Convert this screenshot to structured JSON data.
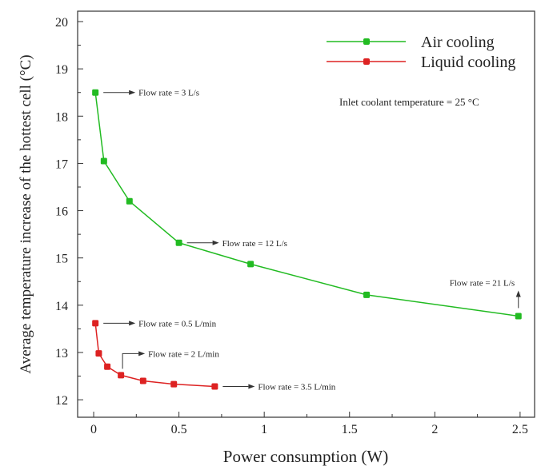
{
  "chart_data": {
    "type": "line",
    "xlabel": "Power consumption (W)",
    "ylabel": "Average temperature increase of the hottest cell (°C)",
    "xlim": [
      -0.094,
      2.585
    ],
    "ylim": [
      11.63,
      20.22
    ],
    "xticks": [
      0,
      0.5,
      1,
      1.5,
      2,
      2.5
    ],
    "xtick_labels": [
      "0",
      "0.5",
      "1",
      "1.5",
      "2",
      "2.5"
    ],
    "yticks": [
      12,
      13,
      14,
      15,
      16,
      17,
      18,
      19,
      20
    ],
    "ytick_labels": [
      "12",
      "13",
      "14",
      "15",
      "16",
      "17",
      "18",
      "19",
      "20"
    ],
    "grid": false,
    "legend_position": "top-right",
    "series": [
      {
        "name": "Air cooling",
        "color": "#22bb22",
        "x": [
          0.01,
          0.06,
          0.21,
          0.5,
          0.92,
          1.6,
          2.49
        ],
        "y": [
          18.5,
          17.05,
          16.2,
          15.32,
          14.87,
          14.22,
          13.77
        ]
      },
      {
        "name": "Liquid cooling",
        "color": "#dd2222",
        "x": [
          0.01,
          0.03,
          0.08,
          0.16,
          0.29,
          0.47,
          0.71
        ],
        "y": [
          13.62,
          12.98,
          12.7,
          12.52,
          12.4,
          12.33,
          12.28
        ]
      }
    ],
    "annotations": [
      {
        "text": "Flow rate = 3 L/s",
        "x": 0.01,
        "y": 18.5,
        "style": "right"
      },
      {
        "text": "Flow rate = 12 L/s",
        "x": 0.5,
        "y": 15.32,
        "style": "right"
      },
      {
        "text": "Flow rate = 21 L/s",
        "x": 2.49,
        "y": 13.77,
        "style": "up"
      },
      {
        "text": "Flow rate = 0.5 L/min",
        "x": 0.01,
        "y": 13.62,
        "style": "right"
      },
      {
        "text": "Flow rate = 2 L/min",
        "x": 0.16,
        "y": 12.52,
        "style": "elbow"
      },
      {
        "text": "Flow rate = 3.5 L/min",
        "x": 0.71,
        "y": 12.28,
        "style": "right"
      }
    ],
    "note": "Inlet coolant temperature = 25 °C"
  }
}
